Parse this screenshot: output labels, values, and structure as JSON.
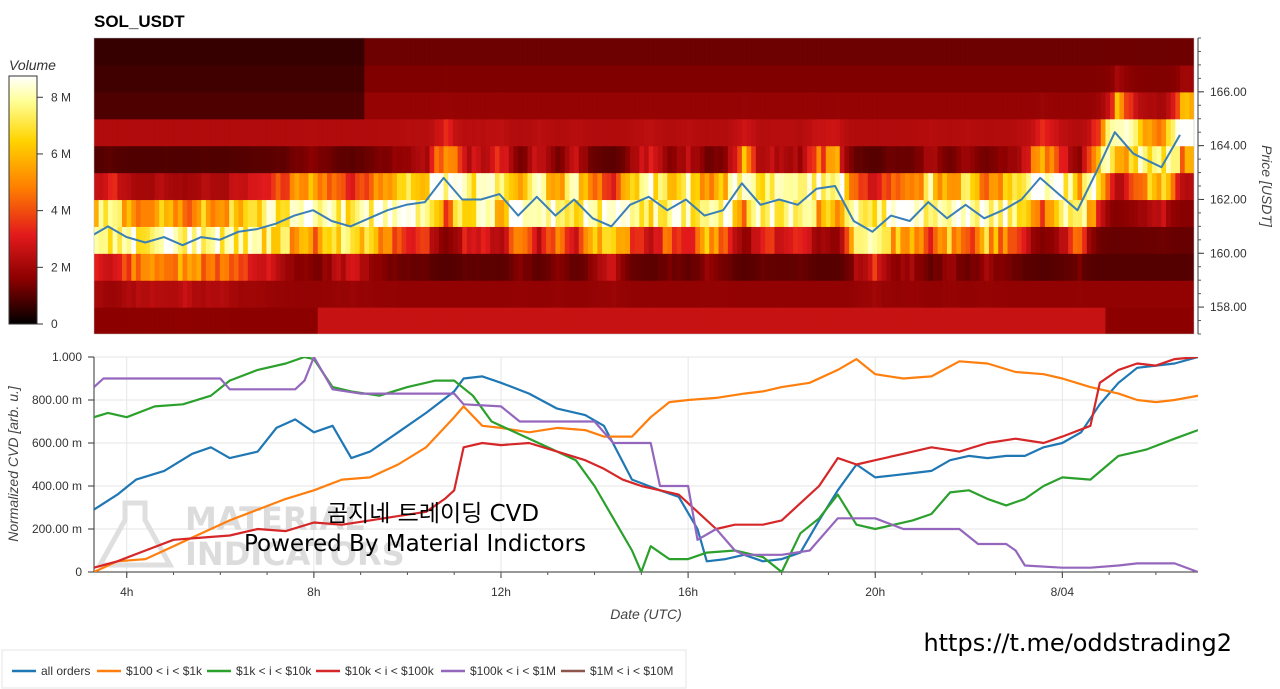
{
  "title": "SOL_USDT",
  "watermark": {
    "line1": "곰지네 트레이딩 CVD",
    "line2": "Powered By Material Indictors",
    "logo_line1": "MATERIAL",
    "logo_line2": "INDICATORS",
    "url": "https://t.me/oddstrading2"
  },
  "colorbar": {
    "title": "Volume",
    "ticks": [
      "8 M",
      "6 M",
      "4 M",
      "2 M",
      "0"
    ],
    "colors": [
      "#000000",
      "#8b0000",
      "#e31a1c",
      "#ff7f00",
      "#ffd400",
      "#ffff99",
      "#ffffff"
    ]
  },
  "colors": {
    "all orders": "#1f77b4",
    "$100 < i < $1k": "#ff7f0e",
    "$1k < i < $10k": "#2ca02c",
    "$10k < i < $100k": "#d62728",
    "$100k < i < $1M": "#9467bd",
    "$1M < i < $10M": "#8c564b",
    "price_line": "#3a7fb5",
    "grid": "#e6e6e6"
  },
  "chart_data": [
    {
      "type": "heatmap",
      "title": "SOL_USDT",
      "ylabel": "Price [USDT]",
      "ylim": [
        157.0,
        168.0
      ],
      "yticks": [
        "166.00",
        "164.00",
        "162.00",
        "160.00",
        "158.00"
      ],
      "price_series": {
        "name": "price",
        "x": [
          3.2,
          3.6,
          4.0,
          4.4,
          4.8,
          5.2,
          5.6,
          6.0,
          6.4,
          6.8,
          7.2,
          7.6,
          8.0,
          8.4,
          8.8,
          9.2,
          9.6,
          10.0,
          10.4,
          10.8,
          11.2,
          11.6,
          12.0,
          12.4,
          12.8,
          13.2,
          13.6,
          14.0,
          14.4,
          14.8,
          15.2,
          15.6,
          16.0,
          16.4,
          16.8,
          17.2,
          17.6,
          18.0,
          18.4,
          18.8,
          19.2,
          19.6,
          20.0,
          20.4,
          20.8,
          21.2,
          21.6,
          22.0,
          22.4,
          22.8,
          23.2,
          23.6,
          24.0,
          24.4,
          24.8,
          25.2,
          25.6,
          26.2,
          26.6
        ],
        "y": [
          160.6,
          161.0,
          160.6,
          160.4,
          160.6,
          160.3,
          160.6,
          160.5,
          160.8,
          160.9,
          161.1,
          161.4,
          161.6,
          161.2,
          161.0,
          161.3,
          161.6,
          161.8,
          161.9,
          162.8,
          162.0,
          162.0,
          162.2,
          161.4,
          162.1,
          161.4,
          162.0,
          161.3,
          161.0,
          161.8,
          162.1,
          161.6,
          162.0,
          161.4,
          161.6,
          162.6,
          161.8,
          162.0,
          161.8,
          162.4,
          162.5,
          161.2,
          160.8,
          161.4,
          161.2,
          161.9,
          161.3,
          161.8,
          161.3,
          161.6,
          162.0,
          162.8,
          162.2,
          161.6,
          163.0,
          164.5,
          163.7,
          163.2,
          164.4
        ]
      }
    },
    {
      "type": "line",
      "xlabel": "Date (UTC)",
      "ylabel": "Normalized CVD [arb. u.]",
      "xlim": [
        3.3,
        26.9
      ],
      "ylim": [
        0,
        1.0
      ],
      "xticks": [
        {
          "v": 4,
          "label": "4h"
        },
        {
          "v": 8,
          "label": "8h"
        },
        {
          "v": 12,
          "label": "12h"
        },
        {
          "v": 16,
          "label": "16h"
        },
        {
          "v": 20,
          "label": "20h"
        },
        {
          "v": 24,
          "label": "8/04"
        }
      ],
      "yticks": [
        {
          "v": 1.0,
          "label": "1.000"
        },
        {
          "v": 0.8,
          "label": "800.00 m"
        },
        {
          "v": 0.6,
          "label": "600.00 m"
        },
        {
          "v": 0.4,
          "label": "400.00 m"
        },
        {
          "v": 0.2,
          "label": "200.00 m"
        },
        {
          "v": 0.0,
          "label": "0"
        }
      ],
      "legend_placement": "bottom",
      "series": [
        {
          "name": "all orders",
          "x": [
            3.3,
            3.8,
            4.2,
            4.8,
            5.4,
            5.8,
            6.2,
            6.8,
            7.2,
            7.6,
            8.0,
            8.4,
            8.8,
            9.2,
            9.8,
            10.4,
            11.0,
            11.2,
            11.6,
            12.0,
            12.6,
            13.2,
            13.8,
            14.2,
            14.8,
            15.4,
            15.8,
            16.2,
            16.4,
            16.8,
            17.2,
            17.6,
            18.0,
            18.4,
            18.8,
            19.2,
            19.6,
            20.0,
            20.4,
            20.8,
            21.2,
            21.6,
            22.0,
            22.4,
            22.8,
            23.2,
            23.6,
            24.0,
            24.4,
            24.8,
            25.2,
            25.6,
            26.0,
            26.4,
            26.9
          ],
          "y": [
            0.29,
            0.36,
            0.43,
            0.47,
            0.55,
            0.58,
            0.53,
            0.56,
            0.67,
            0.71,
            0.65,
            0.68,
            0.53,
            0.56,
            0.65,
            0.74,
            0.84,
            0.9,
            0.91,
            0.88,
            0.83,
            0.76,
            0.73,
            0.68,
            0.43,
            0.38,
            0.35,
            0.2,
            0.05,
            0.06,
            0.08,
            0.05,
            0.06,
            0.09,
            0.24,
            0.38,
            0.5,
            0.44,
            0.45,
            0.46,
            0.47,
            0.52,
            0.54,
            0.53,
            0.54,
            0.54,
            0.58,
            0.6,
            0.65,
            0.78,
            0.88,
            0.95,
            0.96,
            0.97,
            1.0
          ]
        },
        {
          "name": "$100 < i < $1k",
          "x": [
            3.3,
            3.8,
            4.4,
            5.0,
            5.6,
            6.2,
            6.8,
            7.4,
            8.0,
            8.6,
            9.2,
            9.8,
            10.4,
            11.0,
            11.2,
            11.6,
            12.0,
            12.6,
            13.2,
            13.8,
            14.2,
            14.8,
            15.2,
            15.6,
            16.0,
            16.6,
            17.2,
            17.6,
            18.0,
            18.6,
            19.2,
            19.6,
            20.0,
            20.6,
            21.2,
            21.8,
            22.4,
            23.0,
            23.6,
            24.0,
            24.6,
            25.2,
            25.6,
            26.0,
            26.4,
            26.9
          ],
          "y": [
            0.0,
            0.05,
            0.06,
            0.12,
            0.18,
            0.24,
            0.29,
            0.34,
            0.38,
            0.43,
            0.44,
            0.5,
            0.58,
            0.72,
            0.77,
            0.68,
            0.67,
            0.65,
            0.67,
            0.66,
            0.63,
            0.63,
            0.72,
            0.79,
            0.8,
            0.81,
            0.83,
            0.84,
            0.86,
            0.88,
            0.94,
            0.99,
            0.92,
            0.9,
            0.91,
            0.98,
            0.97,
            0.93,
            0.92,
            0.9,
            0.86,
            0.83,
            0.8,
            0.79,
            0.8,
            0.82
          ]
        },
        {
          "name": "$1k < i < $10k",
          "x": [
            3.3,
            3.6,
            4.0,
            4.6,
            5.2,
            5.8,
            6.2,
            6.8,
            7.4,
            7.8,
            8.0,
            8.4,
            8.8,
            9.4,
            10.0,
            10.6,
            11.0,
            11.4,
            11.8,
            12.4,
            13.0,
            13.6,
            14.0,
            14.4,
            14.8,
            15.0,
            15.2,
            15.6,
            16.0,
            16.4,
            17.0,
            17.6,
            18.0,
            18.4,
            18.8,
            19.2,
            19.6,
            20.0,
            20.4,
            20.8,
            21.2,
            21.6,
            22.0,
            22.4,
            22.8,
            23.2,
            23.6,
            24.0,
            24.6,
            25.2,
            25.8,
            26.4,
            26.9
          ],
          "y": [
            0.72,
            0.74,
            0.72,
            0.77,
            0.78,
            0.82,
            0.89,
            0.94,
            0.97,
            1.0,
            0.99,
            0.86,
            0.84,
            0.82,
            0.86,
            0.89,
            0.89,
            0.82,
            0.7,
            0.64,
            0.58,
            0.52,
            0.4,
            0.25,
            0.1,
            0.0,
            0.12,
            0.06,
            0.06,
            0.09,
            0.1,
            0.07,
            0.0,
            0.18,
            0.25,
            0.36,
            0.22,
            0.2,
            0.22,
            0.24,
            0.27,
            0.37,
            0.38,
            0.34,
            0.31,
            0.34,
            0.4,
            0.44,
            0.43,
            0.54,
            0.57,
            0.62,
            0.66
          ]
        },
        {
          "name": "$10k < i < $100k",
          "x": [
            3.3,
            3.8,
            4.4,
            5.0,
            5.6,
            6.2,
            6.8,
            7.4,
            8.0,
            8.6,
            9.2,
            9.8,
            10.4,
            10.8,
            11.0,
            11.2,
            11.6,
            12.0,
            12.6,
            13.2,
            13.8,
            14.2,
            14.6,
            15.0,
            15.4,
            15.8,
            16.2,
            16.6,
            17.0,
            17.6,
            18.0,
            18.4,
            18.8,
            19.2,
            19.6,
            20.0,
            20.6,
            21.2,
            21.8,
            22.4,
            23.0,
            23.6,
            24.0,
            24.6,
            24.8,
            25.2,
            25.6,
            26.0,
            26.4,
            26.9
          ],
          "y": [
            0.02,
            0.05,
            0.1,
            0.15,
            0.16,
            0.17,
            0.2,
            0.19,
            0.23,
            0.22,
            0.24,
            0.26,
            0.28,
            0.34,
            0.38,
            0.58,
            0.6,
            0.59,
            0.6,
            0.56,
            0.52,
            0.48,
            0.43,
            0.4,
            0.38,
            0.36,
            0.28,
            0.2,
            0.22,
            0.22,
            0.24,
            0.32,
            0.4,
            0.53,
            0.5,
            0.52,
            0.55,
            0.58,
            0.56,
            0.6,
            0.62,
            0.6,
            0.63,
            0.68,
            0.88,
            0.94,
            0.97,
            0.96,
            0.99,
            1.0
          ]
        },
        {
          "name": "$100k < i < $1M",
          "x": [
            3.3,
            3.5,
            4.0,
            5.0,
            6.0,
            6.2,
            7.0,
            7.6,
            7.8,
            8.0,
            8.4,
            9.0,
            10.0,
            11.0,
            11.2,
            12.0,
            12.4,
            14.0,
            14.4,
            15.2,
            15.4,
            15.6,
            16.0,
            16.2,
            16.6,
            17.0,
            17.2,
            17.6,
            18.0,
            18.6,
            19.2,
            20.0,
            20.6,
            21.8,
            22.2,
            22.8,
            23.0,
            23.2,
            24.0,
            24.6,
            25.2,
            25.6,
            26.0,
            26.4,
            26.9
          ],
          "y": [
            0.86,
            0.9,
            0.9,
            0.9,
            0.9,
            0.85,
            0.85,
            0.85,
            0.89,
            1.0,
            0.85,
            0.83,
            0.83,
            0.83,
            0.78,
            0.77,
            0.7,
            0.7,
            0.6,
            0.6,
            0.4,
            0.4,
            0.4,
            0.15,
            0.2,
            0.1,
            0.08,
            0.08,
            0.08,
            0.1,
            0.25,
            0.25,
            0.2,
            0.2,
            0.13,
            0.13,
            0.1,
            0.03,
            0.02,
            0.02,
            0.03,
            0.04,
            0.04,
            0.04,
            0.0
          ]
        }
      ]
    }
  ]
}
